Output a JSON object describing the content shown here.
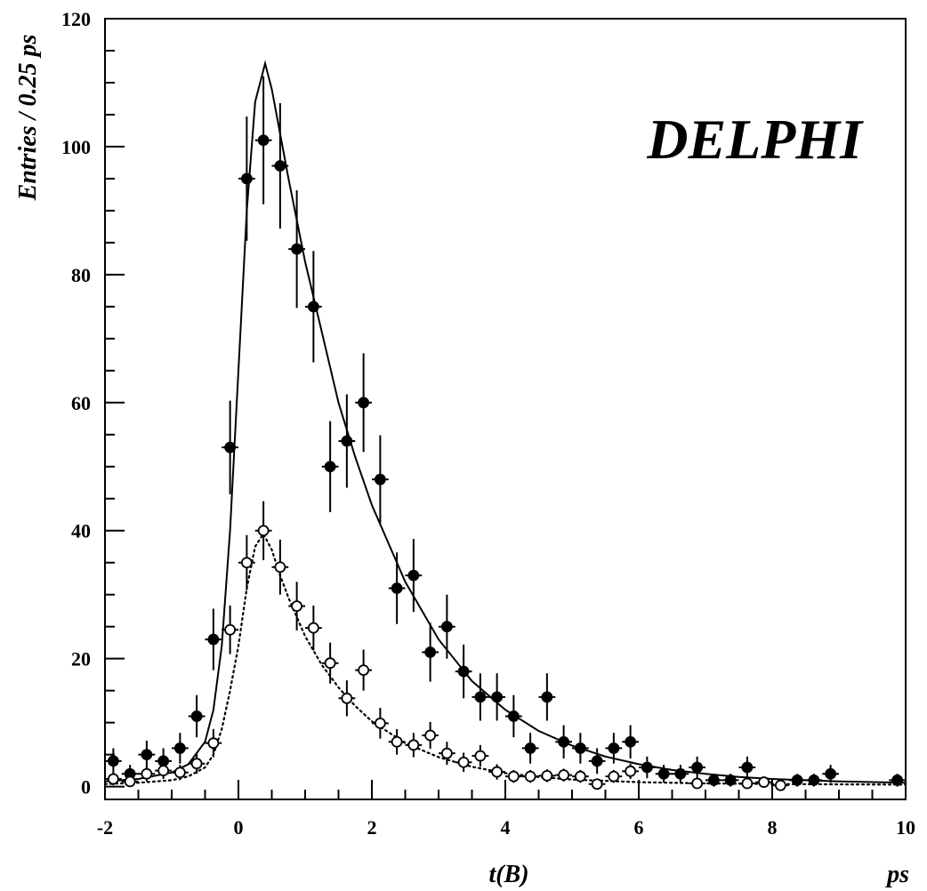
{
  "chart_data": {
    "type": "scatter",
    "title": "",
    "brand_label": "DELPHI",
    "xlabel": "t(B)",
    "xunit": "ps",
    "ylabel": "Entries / 0.25 ps",
    "xlim": [
      -2,
      10
    ],
    "ylim": [
      -2,
      120
    ],
    "xticks": [
      -2,
      0,
      2,
      4,
      6,
      8,
      10
    ],
    "yticks": [
      0,
      20,
      40,
      60,
      80,
      100,
      120
    ],
    "xtick_labels": [
      "-2",
      "0",
      "2",
      "4",
      "6",
      "8",
      "10"
    ],
    "ytick_labels": [
      "0",
      "20",
      "40",
      "60",
      "80",
      "100",
      "120"
    ],
    "grid": false,
    "legend": "none",
    "bin_halfwidth": 0.125,
    "series": [
      {
        "marker": "filled-circle",
        "points": [
          {
            "x": -1.875,
            "y": 4,
            "err": 2
          },
          {
            "x": -1.625,
            "y": 2,
            "err": 1.4
          },
          {
            "x": -1.375,
            "y": 5,
            "err": 2.2
          },
          {
            "x": -1.125,
            "y": 4,
            "err": 2
          },
          {
            "x": -0.875,
            "y": 6,
            "err": 2.4
          },
          {
            "x": -0.625,
            "y": 11,
            "err": 3.3
          },
          {
            "x": -0.375,
            "y": 23,
            "err": 4.8
          },
          {
            "x": -0.125,
            "y": 53,
            "err": 7.3
          },
          {
            "x": 0.125,
            "y": 95,
            "err": 9.7
          },
          {
            "x": 0.375,
            "y": 101,
            "err": 10
          },
          {
            "x": 0.625,
            "y": 97,
            "err": 9.8
          },
          {
            "x": 0.875,
            "y": 84,
            "err": 9.2
          },
          {
            "x": 1.125,
            "y": 75,
            "err": 8.7
          },
          {
            "x": 1.375,
            "y": 50,
            "err": 7.1
          },
          {
            "x": 1.625,
            "y": 54,
            "err": 7.3
          },
          {
            "x": 1.875,
            "y": 60,
            "err": 7.7
          },
          {
            "x": 2.125,
            "y": 48,
            "err": 6.9
          },
          {
            "x": 2.375,
            "y": 31,
            "err": 5.6
          },
          {
            "x": 2.625,
            "y": 33,
            "err": 5.7
          },
          {
            "x": 2.875,
            "y": 21,
            "err": 4.6
          },
          {
            "x": 3.125,
            "y": 25,
            "err": 5
          },
          {
            "x": 3.375,
            "y": 18,
            "err": 4.2
          },
          {
            "x": 3.625,
            "y": 14,
            "err": 3.7
          },
          {
            "x": 3.875,
            "y": 14,
            "err": 3.7
          },
          {
            "x": 4.125,
            "y": 11,
            "err": 3.3
          },
          {
            "x": 4.375,
            "y": 6,
            "err": 2.4
          },
          {
            "x": 4.625,
            "y": 14,
            "err": 3.7
          },
          {
            "x": 4.875,
            "y": 7,
            "err": 2.6
          },
          {
            "x": 5.125,
            "y": 6,
            "err": 2.4
          },
          {
            "x": 5.375,
            "y": 4,
            "err": 2
          },
          {
            "x": 5.625,
            "y": 6,
            "err": 2.4
          },
          {
            "x": 5.875,
            "y": 7,
            "err": 2.6
          },
          {
            "x": 6.125,
            "y": 3,
            "err": 1.7
          },
          {
            "x": 6.375,
            "y": 2,
            "err": 1.4
          },
          {
            "x": 6.625,
            "y": 2,
            "err": 1.4
          },
          {
            "x": 6.875,
            "y": 3,
            "err": 1.7
          },
          {
            "x": 7.125,
            "y": 1,
            "err": 1
          },
          {
            "x": 7.375,
            "y": 1,
            "err": 1
          },
          {
            "x": 7.625,
            "y": 3,
            "err": 1.7
          },
          {
            "x": 8.375,
            "y": 1,
            "err": 1
          },
          {
            "x": 8.625,
            "y": 1,
            "err": 1
          },
          {
            "x": 8.875,
            "y": 2,
            "err": 1.4
          },
          {
            "x": 9.875,
            "y": 1,
            "err": 1
          }
        ]
      },
      {
        "marker": "open-circle",
        "points": [
          {
            "x": -1.875,
            "y": 1.2,
            "err": 1
          },
          {
            "x": -1.625,
            "y": 0.8,
            "err": 0.8
          },
          {
            "x": -1.375,
            "y": 2,
            "err": 1.2
          },
          {
            "x": -1.125,
            "y": 2.5,
            "err": 1.3
          },
          {
            "x": -0.875,
            "y": 2.2,
            "err": 1.2
          },
          {
            "x": -0.625,
            "y": 3.6,
            "err": 1.6
          },
          {
            "x": -0.375,
            "y": 6.8,
            "err": 2.2
          },
          {
            "x": -0.125,
            "y": 24.5,
            "err": 3.8
          },
          {
            "x": 0.125,
            "y": 35,
            "err": 4.3
          },
          {
            "x": 0.375,
            "y": 40,
            "err": 4.6
          },
          {
            "x": 0.625,
            "y": 34.3,
            "err": 4.3
          },
          {
            "x": 0.875,
            "y": 28.2,
            "err": 3.8
          },
          {
            "x": 1.125,
            "y": 24.8,
            "err": 3.5
          },
          {
            "x": 1.375,
            "y": 19.3,
            "err": 3.2
          },
          {
            "x": 1.625,
            "y": 13.8,
            "err": 2.8
          },
          {
            "x": 1.875,
            "y": 18.2,
            "err": 3.2
          },
          {
            "x": 2.125,
            "y": 9.9,
            "err": 2.4
          },
          {
            "x": 2.375,
            "y": 7,
            "err": 2
          },
          {
            "x": 2.625,
            "y": 6.5,
            "err": 1.9
          },
          {
            "x": 2.875,
            "y": 8,
            "err": 2.1
          },
          {
            "x": 3.125,
            "y": 5.2,
            "err": 1.8
          },
          {
            "x": 3.375,
            "y": 3.8,
            "err": 1.5
          },
          {
            "x": 3.625,
            "y": 4.8,
            "err": 1.7
          },
          {
            "x": 3.875,
            "y": 2.3,
            "err": 1.2
          },
          {
            "x": 4.125,
            "y": 1.6,
            "err": 1
          },
          {
            "x": 4.375,
            "y": 1.6,
            "err": 1
          },
          {
            "x": 4.625,
            "y": 1.7,
            "err": 1
          },
          {
            "x": 4.875,
            "y": 1.8,
            "err": 1
          },
          {
            "x": 5.125,
            "y": 1.6,
            "err": 1
          },
          {
            "x": 5.375,
            "y": 0.4,
            "err": 0.6
          },
          {
            "x": 5.625,
            "y": 1.6,
            "err": 1
          },
          {
            "x": 5.875,
            "y": 2.4,
            "err": 1.2
          },
          {
            "x": 6.875,
            "y": 0.5,
            "err": 0.6
          },
          {
            "x": 7.625,
            "y": 0.5,
            "err": 0.6
          },
          {
            "x": 7.875,
            "y": 0.7,
            "err": 0.7
          },
          {
            "x": 8.125,
            "y": 0.2,
            "err": 0.5
          }
        ]
      }
    ],
    "fits": [
      {
        "style": "solid",
        "points": [
          [
            -2,
            0.8
          ],
          [
            -1.5,
            1.2
          ],
          [
            -1,
            2.2
          ],
          [
            -0.75,
            3.5
          ],
          [
            -0.5,
            7
          ],
          [
            -0.375,
            12
          ],
          [
            -0.25,
            22
          ],
          [
            -0.125,
            40
          ],
          [
            0,
            65
          ],
          [
            0.125,
            90
          ],
          [
            0.25,
            107
          ],
          [
            0.4,
            113
          ],
          [
            0.5,
            109
          ],
          [
            0.75,
            95
          ],
          [
            1,
            82
          ],
          [
            1.25,
            71
          ],
          [
            1.5,
            60
          ],
          [
            1.75,
            51.5
          ],
          [
            2,
            44
          ],
          [
            2.5,
            32
          ],
          [
            3,
            23
          ],
          [
            3.5,
            16.5
          ],
          [
            4,
            12
          ],
          [
            4.5,
            8.7
          ],
          [
            5,
            6.4
          ],
          [
            5.5,
            4.7
          ],
          [
            6,
            3.5
          ],
          [
            6.5,
            2.6
          ],
          [
            7,
            2
          ],
          [
            7.5,
            1.5
          ],
          [
            8,
            1.2
          ],
          [
            9,
            0.8
          ],
          [
            10,
            0.6
          ]
        ]
      },
      {
        "style": "dotted",
        "points": [
          [
            -2,
            0.4
          ],
          [
            -1.5,
            0.6
          ],
          [
            -1,
            1
          ],
          [
            -0.75,
            1.6
          ],
          [
            -0.5,
            3
          ],
          [
            -0.375,
            5
          ],
          [
            -0.25,
            9
          ],
          [
            -0.125,
            15
          ],
          [
            0,
            22
          ],
          [
            0.125,
            31
          ],
          [
            0.25,
            37.5
          ],
          [
            0.375,
            39.5
          ],
          [
            0.5,
            37
          ],
          [
            0.625,
            33
          ],
          [
            0.75,
            29.5
          ],
          [
            1,
            23.5
          ],
          [
            1.25,
            19
          ],
          [
            1.5,
            15.5
          ],
          [
            1.75,
            12.6
          ],
          [
            2,
            10.2
          ],
          [
            2.5,
            6.8
          ],
          [
            3,
            4.6
          ],
          [
            3.5,
            3.1
          ],
          [
            4,
            2.1
          ],
          [
            4.5,
            1.5
          ],
          [
            5,
            1.1
          ],
          [
            6,
            0.7
          ],
          [
            7,
            0.5
          ],
          [
            8,
            0.4
          ],
          [
            10,
            0.3
          ]
        ]
      }
    ]
  }
}
